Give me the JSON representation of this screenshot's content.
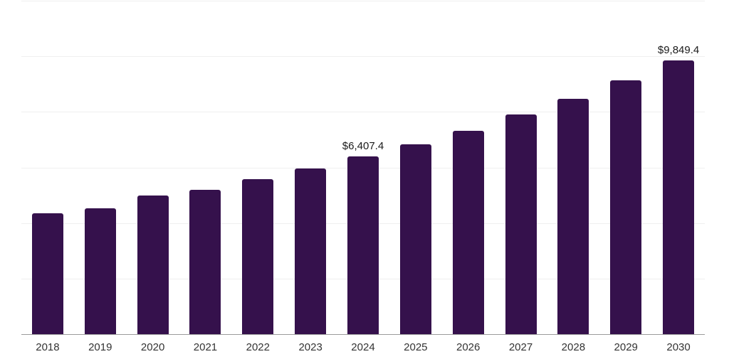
{
  "chart": {
    "background": "#ffffff",
    "bar_color": "#35114C",
    "grid_color": "#efefef",
    "axis_color": "#9b9b9b",
    "value_label_color": "#1a1a1a",
    "tick_label_color": "#333333"
  },
  "chart_data": {
    "type": "bar",
    "title": "",
    "xlabel": "",
    "ylabel": "",
    "categories": [
      "2018",
      "2019",
      "2020",
      "2021",
      "2022",
      "2023",
      "2024",
      "2025",
      "2026",
      "2027",
      "2028",
      "2029",
      "2030"
    ],
    "values": [
      4355,
      4535,
      4985,
      5195,
      5590,
      5955,
      6407.4,
      6845,
      7325,
      7920,
      8470,
      9135,
      9849.4
    ],
    "value_labels": [
      "",
      "",
      "",
      "",
      "",
      "",
      "$6,407.4",
      "",
      "",
      "",
      "",
      "",
      "$9,849.4"
    ],
    "ylim": [
      0,
      12000
    ],
    "gridline_step": 2000,
    "grid": true,
    "legend_position": "none",
    "y_axis_labels_visible": false
  }
}
